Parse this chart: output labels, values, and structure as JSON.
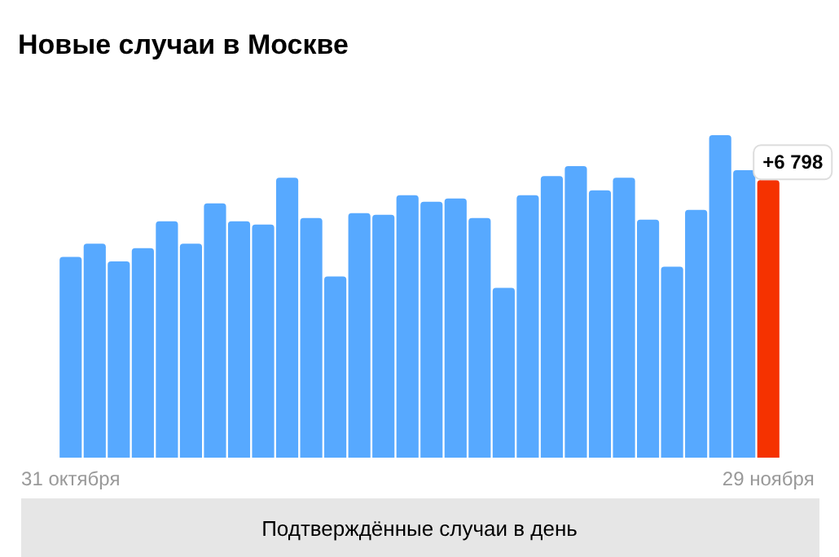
{
  "chart_data": {
    "type": "bar",
    "title": "Новые случаи в Москве",
    "categories": [
      "31 октября",
      null,
      null,
      null,
      null,
      null,
      null,
      null,
      null,
      null,
      null,
      null,
      null,
      null,
      null,
      null,
      null,
      null,
      null,
      null,
      null,
      null,
      null,
      null,
      null,
      null,
      null,
      null,
      null,
      "29 ноября"
    ],
    "values": [
      4920,
      5240,
      4810,
      5130,
      5790,
      5240,
      6230,
      5790,
      5710,
      6860,
      5870,
      4440,
      5990,
      5950,
      6430,
      6270,
      6350,
      5870,
      4160,
      6430,
      6900,
      7140,
      6550,
      6860,
      5830,
      4680,
      6070,
      7900,
      7040,
      6798
    ],
    "colors": [
      "#57a9ff",
      "#57a9ff",
      "#57a9ff",
      "#57a9ff",
      "#57a9ff",
      "#57a9ff",
      "#57a9ff",
      "#57a9ff",
      "#57a9ff",
      "#57a9ff",
      "#57a9ff",
      "#57a9ff",
      "#57a9ff",
      "#57a9ff",
      "#57a9ff",
      "#57a9ff",
      "#57a9ff",
      "#57a9ff",
      "#57a9ff",
      "#57a9ff",
      "#57a9ff",
      "#57a9ff",
      "#57a9ff",
      "#57a9ff",
      "#57a9ff",
      "#57a9ff",
      "#57a9ff",
      "#57a9ff",
      "#57a9ff",
      "#f53200"
    ],
    "value_labels": [
      null,
      null,
      null,
      null,
      null,
      null,
      null,
      null,
      null,
      null,
      null,
      null,
      null,
      null,
      null,
      null,
      null,
      null,
      null,
      null,
      null,
      null,
      null,
      null,
      null,
      null,
      null,
      null,
      null,
      "+6 798"
    ],
    "annotations": [
      "Подтверждённые случаи в день"
    ],
    "grid": false
  }
}
